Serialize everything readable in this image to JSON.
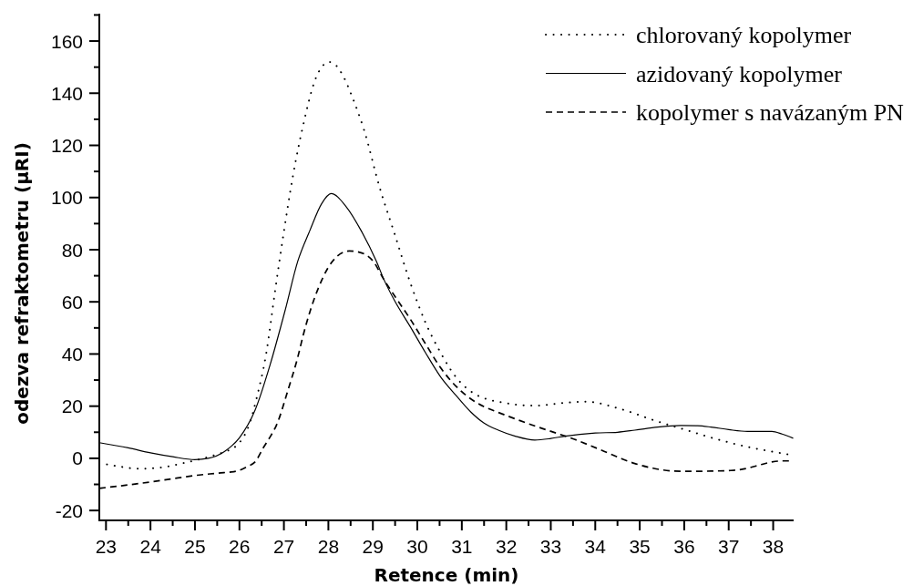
{
  "chart_data": {
    "type": "line",
    "xlabel": "Retence (min)",
    "ylabel": "odezva refraktometru (μRI)",
    "xlim": [
      22.85,
      38.46
    ],
    "ylim": [
      -23.8,
      170.5
    ],
    "xticks": [
      23,
      {
        "value": 23.5,
        "label": null
      },
      24,
      {
        "value": 24.5,
        "label": null
      },
      25,
      {
        "value": 25.5,
        "label": null
      },
      26,
      {
        "value": 26.5,
        "label": null
      },
      27,
      {
        "value": 27.5,
        "label": null
      },
      28,
      {
        "value": 28.5,
        "label": null
      },
      29,
      {
        "value": 29.5,
        "label": null
      },
      30,
      {
        "value": 30.5,
        "label": null
      },
      31,
      {
        "value": 31.5,
        "label": null
      },
      32,
      {
        "value": 32.5,
        "label": null
      },
      33,
      {
        "value": 33.5,
        "label": null
      },
      34,
      {
        "value": 34.5,
        "label": null
      },
      35,
      {
        "value": 35.5,
        "label": null
      },
      36,
      {
        "value": 36.5,
        "label": null
      },
      37,
      {
        "value": 37.5,
        "label": null
      },
      38
    ],
    "yticks": [
      -20,
      {
        "value": -10,
        "label": null
      },
      0,
      {
        "value": 10,
        "label": null
      },
      20,
      {
        "value": 30,
        "label": null
      },
      40,
      {
        "value": 50,
        "label": null
      },
      60,
      {
        "value": 70,
        "label": null
      },
      80,
      {
        "value": 90,
        "label": null
      },
      100,
      {
        "value": 110,
        "label": null
      },
      120,
      {
        "value": 130,
        "label": null
      },
      140,
      {
        "value": 150,
        "label": null
      },
      160,
      {
        "value": 170,
        "label": null
      }
    ],
    "legend": "top right",
    "series": [
      {
        "name": "chlorovaný kopolymer",
        "color": "#000000",
        "line_style": "dotted",
        "x": [
          22.85,
          23.25,
          23.75,
          24.25,
          24.75,
          25.0,
          25.5,
          25.75,
          26.0,
          26.2,
          26.4,
          26.6,
          26.8,
          27.0,
          27.2,
          27.45,
          27.7,
          27.9,
          28.0,
          28.15,
          28.35,
          28.55,
          28.8,
          29.15,
          29.49,
          29.84,
          30.18,
          30.52,
          30.86,
          31.28,
          31.95,
          32.64,
          33.32,
          33.8,
          34.55,
          35.37,
          36.05,
          36.74,
          37.42,
          38.0,
          38.45
        ],
        "values": [
          -1.8,
          -3.0,
          -4.0,
          -3.5,
          -1.8,
          -0.8,
          1.5,
          3,
          6,
          12,
          24,
          40,
          64,
          87,
          108,
          129,
          145,
          151,
          152,
          151,
          146,
          138,
          126,
          104,
          86,
          67.4,
          52.2,
          40.6,
          31.3,
          24.8,
          21.3,
          20.2,
          21.3,
          21.7,
          19,
          14.3,
          10.8,
          7.3,
          4.4,
          2.5,
          1.2
        ]
      },
      {
        "name": "azidovaný kopolymer",
        "color": "#000000",
        "line_style": "solid",
        "x": [
          22.85,
          23.5,
          24.0,
          24.5,
          25.0,
          25.3,
          25.67,
          26.0,
          26.35,
          26.69,
          27.03,
          27.31,
          27.58,
          27.85,
          28.06,
          28.4,
          28.74,
          29.08,
          29.25,
          29.49,
          29.84,
          30.18,
          30.52,
          30.86,
          31.2,
          31.5,
          31.82,
          32.2,
          32.64,
          33.0,
          33.32,
          34.0,
          34.5,
          34.89,
          35.4,
          35.92,
          36.3,
          36.6,
          37.0,
          37.42,
          37.97,
          38.2,
          38.45
        ],
        "values": [
          6.0,
          4.0,
          2.1,
          0.6,
          -0.5,
          0,
          2.7,
          7.9,
          18.4,
          35.9,
          56.9,
          75.5,
          87.2,
          97.7,
          101.5,
          96.5,
          87.2,
          75.5,
          68.5,
          60.4,
          50.5,
          40.6,
          31.3,
          24.3,
          17.8,
          13.5,
          10.8,
          8.5,
          7.0,
          7.6,
          8.5,
          9.7,
          10,
          10.8,
          12,
          12.6,
          12.5,
          12.0,
          11,
          10.3,
          10.3,
          9.3,
          7.7
        ]
      },
      {
        "name": "kopolymer s navázaným PN",
        "color": "#000000",
        "line_style": "dashed",
        "x": [
          22.85,
          23.5,
          24.03,
          24.5,
          25.0,
          25.5,
          25.94,
          26.2,
          26.35,
          26.55,
          26.7,
          26.83,
          27.1,
          27.3,
          27.44,
          27.6,
          27.78,
          27.99,
          28.2,
          28.47,
          28.7,
          29.01,
          29.25,
          29.5,
          29.84,
          30.18,
          30.52,
          30.86,
          31.13,
          31.5,
          31.82,
          32.3,
          32.71,
          33.1,
          33.53,
          33.9,
          34.28,
          34.6,
          34.89,
          35.3,
          35.78,
          36.2,
          36.6,
          37.0,
          37.28,
          37.6,
          37.97,
          38.2,
          38.45
        ],
        "values": [
          -11.5,
          -10.2,
          -9.0,
          -7.8,
          -6.6,
          -5.7,
          -4.9,
          -3,
          -1.4,
          4.4,
          8.5,
          12.6,
          26.6,
          38,
          47.6,
          57,
          65.5,
          73,
          77.5,
          79.5,
          79,
          75.5,
          68.5,
          62,
          53.4,
          44,
          34.8,
          27.8,
          23.7,
          19.8,
          17.6,
          14.5,
          12,
          9.8,
          7.3,
          4.8,
          2.1,
          -0.2,
          -2.0,
          -3.8,
          -4.9,
          -5.0,
          -4.9,
          -4.7,
          -4.3,
          -3,
          -1.4,
          -1.0,
          -1.0
        ]
      }
    ]
  }
}
